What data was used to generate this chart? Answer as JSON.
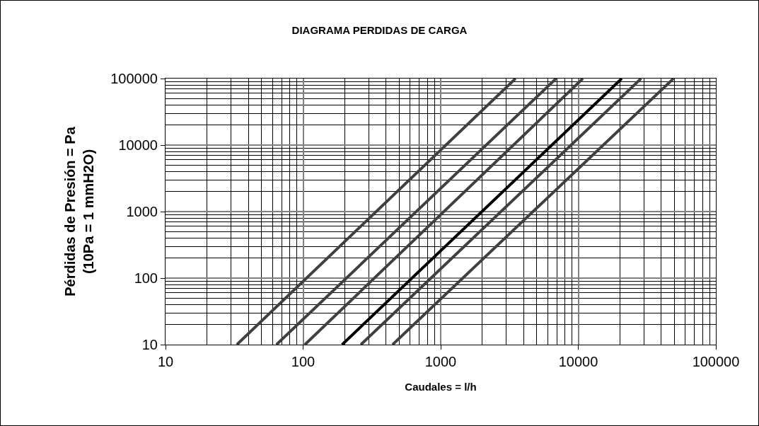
{
  "chart_data": {
    "type": "line",
    "title": "DIAGRAMA PERDIDAS DE CARGA",
    "xlabel": "Caudales = l/h",
    "ylabel": "Pérdidas de Presión = Pa\n(10Pa = 1 mmH2O)",
    "log": "xy",
    "grid": true,
    "marker": "none",
    "line_style": "solid",
    "xlim": [
      10,
      100000
    ],
    "xticks": [
      10,
      100,
      1000,
      10000,
      100000
    ],
    "ylim": [
      10,
      100000
    ],
    "yticks": [
      10,
      100,
      1000,
      10000,
      100000
    ],
    "series": [
      {
        "color": "#404040",
        "x": [
          33,
          3500
        ],
        "values": [
          10,
          100000
        ]
      },
      {
        "color": "#404040",
        "x": [
          64,
          6900
        ],
        "values": [
          10,
          100000
        ]
      },
      {
        "color": "#404040",
        "x": [
          103,
          10800
        ],
        "values": [
          10,
          100000
        ]
      },
      {
        "color": "#000000",
        "x": [
          192,
          20700
        ],
        "values": [
          10,
          100000
        ]
      },
      {
        "color": "#404040",
        "x": [
          263,
          28600
        ],
        "values": [
          10,
          100000
        ]
      },
      {
        "color": "#404040",
        "x": [
          447,
          49200
        ],
        "values": [
          10,
          100000
        ]
      }
    ]
  }
}
